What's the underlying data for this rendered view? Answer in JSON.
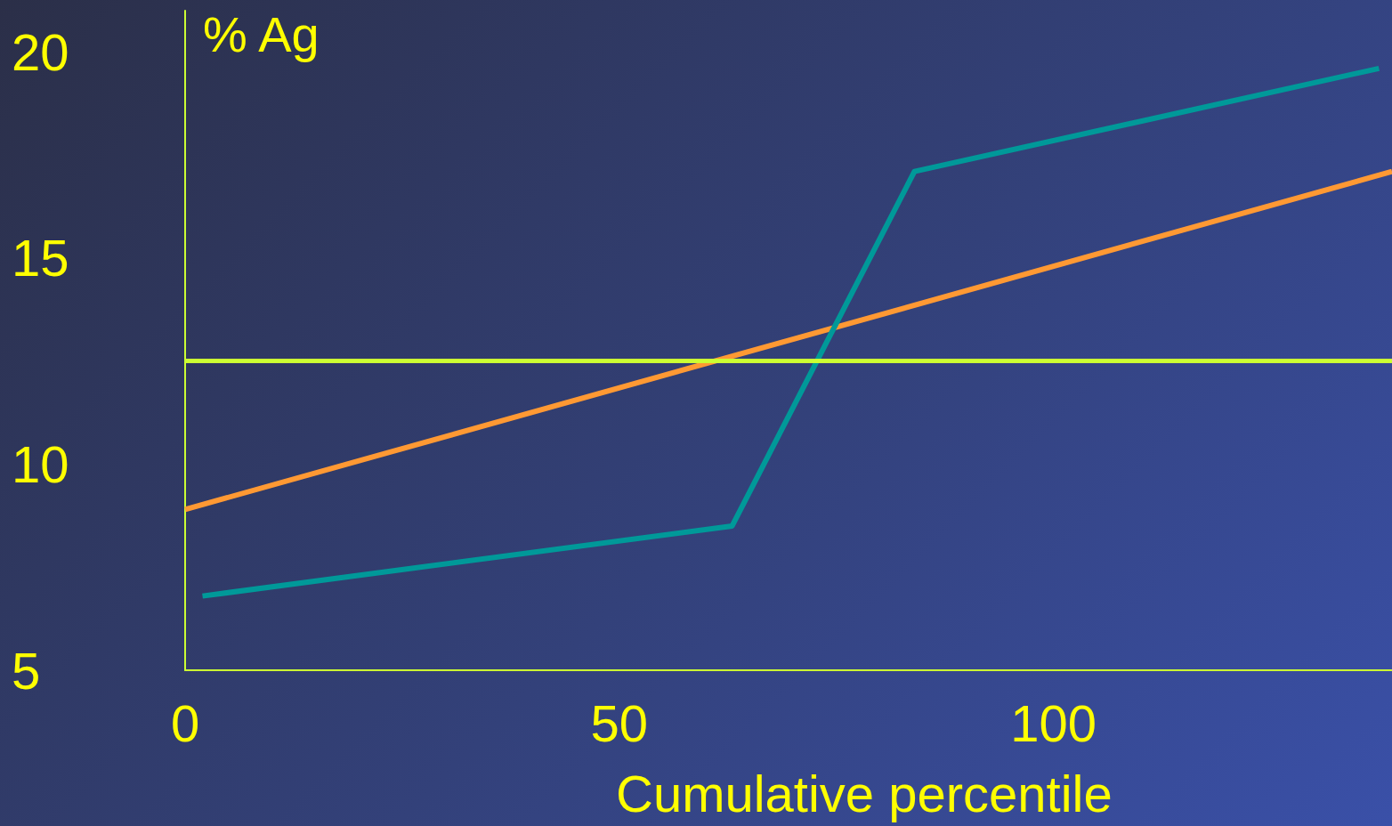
{
  "chart_data": {
    "type": "line",
    "xlabel": "Cumulative percentile",
    "ylabel": "% Ag",
    "xlim": [
      0,
      139
    ],
    "xticks": [
      0,
      50,
      100
    ],
    "ylim": [
      5,
      21
    ],
    "yticks": [
      5,
      10,
      15,
      20
    ],
    "grid": false,
    "marker": "none",
    "line_style": "solid",
    "series": [
      {
        "color": "#ff9933",
        "x": [
          0,
          139
        ],
        "values": [
          8.9,
          17.1
        ]
      },
      {
        "color": "#009999",
        "x": [
          2,
          63,
          84,
          137.5
        ],
        "values": [
          6.8,
          8.5,
          17.1,
          19.6
        ]
      }
    ],
    "ref_lines": [
      {
        "axis": "y",
        "value": 12.5,
        "label": null,
        "color": "#ccff33"
      }
    ]
  }
}
